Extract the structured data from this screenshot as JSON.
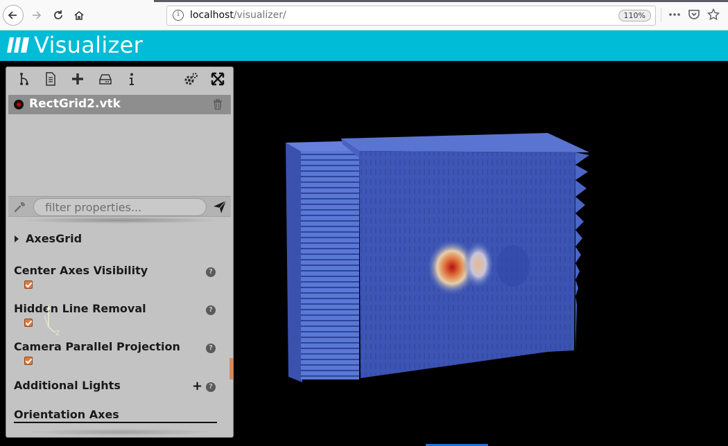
{
  "browser": {
    "url_host": "localhost",
    "url_path": "/visualizer/",
    "zoom": "110%",
    "icons": [
      "back-icon",
      "forward-icon",
      "reload-icon",
      "home-icon",
      "info-icon",
      "more-icon",
      "pocket-icon",
      "bookmark-star-icon"
    ]
  },
  "app": {
    "title": "Visualizer",
    "accent_color": "#00bcd6"
  },
  "toolbar": {
    "icons": [
      "pipeline-icon",
      "file-icon",
      "add-icon",
      "save-icon",
      "info-icon",
      "settings-icon",
      "fullscreen-icon"
    ]
  },
  "pipeline": {
    "source_name": "RectGrid2.vtk",
    "visibility_color": "#c40000"
  },
  "filter": {
    "placeholder": "filter properties..."
  },
  "properties": {
    "group": "AxesGrid",
    "items": [
      {
        "label": "Center Axes Visibility",
        "checked": true
      },
      {
        "label": "Hidden Line Removal",
        "checked": true
      },
      {
        "label": "Camera Parallel Projection",
        "checked": true
      }
    ],
    "additional_lights": "Additional Lights",
    "orientation_axes": "Orientation Axes",
    "checkbox_color": "#e07a3c"
  },
  "help_glyph": "?",
  "plus_glyph": "+",
  "axes_widget": {
    "z_label": "Z"
  }
}
